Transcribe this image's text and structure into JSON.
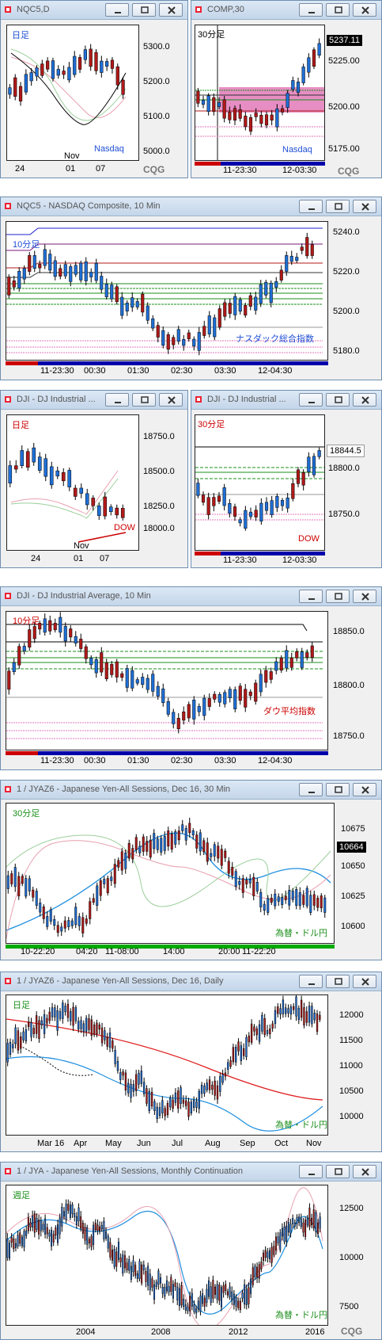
{
  "windows": {
    "w1": {
      "title": "NQC5,D",
      "period_label": "日足",
      "name_label": "Nasdaq",
      "y_ticks": [
        "5300.0",
        "5200.0",
        "5100.0",
        "5000.0"
      ],
      "x_ticks": [
        "24",
        "01",
        "07"
      ],
      "x_month": "Nov"
    },
    "w2": {
      "title": "COMP,30",
      "period_label": "30分足",
      "name_label": "Nasdaq",
      "price_tag": "5237.11",
      "y_ticks": [
        "5225.00",
        "5200.00",
        "5175.00"
      ],
      "x_ticks": [
        "11-23:30",
        "12-03:30"
      ]
    },
    "w3": {
      "title": "NQC5 - NASDAQ Composite, 10 Min",
      "period_label": "10分足",
      "name_label": "ナスダック総合指数",
      "y_ticks": [
        "5240.0",
        "5220.0",
        "5200.0",
        "5180.0"
      ],
      "x_ticks": [
        "11-23:30",
        "00:30",
        "01:30",
        "02:30",
        "03:30",
        "12-04:30"
      ]
    },
    "w4": {
      "title": "DJI - DJ Industrial ...",
      "period_label": "日足",
      "name_label": "DOW",
      "y_ticks": [
        "18750.0",
        "18500.0",
        "18250.0",
        "18000.0"
      ],
      "x_ticks": [
        "24",
        "01",
        "07"
      ],
      "x_month": "Nov"
    },
    "w5": {
      "title": "DJI - DJ Industrial ...",
      "period_label": "30分足",
      "name_label": "DOW",
      "price_tag": "18844.5",
      "y_ticks": [
        "18800.0",
        "18750.0"
      ],
      "x_ticks": [
        "11-23:30",
        "12-03:30"
      ]
    },
    "w6": {
      "title": "DJI - DJ Industrial Average, 10 Min",
      "period_label": "10分足",
      "name_label": "ダウ平均指数",
      "y_ticks": [
        "18850.0",
        "18800.0",
        "18750.0"
      ],
      "x_ticks": [
        "11-23:30",
        "00:30",
        "01:30",
        "02:30",
        "03:30",
        "12-04:30"
      ]
    },
    "w7": {
      "title": "1 / JYAZ6 - Japanese Yen-All Sessions, Dec 16, 30 Min",
      "period_label": "30分足",
      "name_label": "為替・ドル円",
      "price_tag": "10664",
      "y_ticks": [
        "10675",
        "10650",
        "10625",
        "10600"
      ],
      "x_ticks": [
        "10-22:20",
        "04:20",
        "11-08:00",
        "14:00",
        "20:00",
        "11-22:20"
      ]
    },
    "w8": {
      "title": "1 / JYAZ6 - Japanese Yen-All Sessions, Dec 16, Daily",
      "period_label": "日足",
      "name_label": "為替・ドル円",
      "y_ticks": [
        "12000",
        "11500",
        "11000",
        "10500",
        "10000"
      ],
      "x_ticks": [
        "Mar 16",
        "Apr",
        "May",
        "Jun",
        "Jul",
        "Aug",
        "Sep",
        "Oct",
        "Nov"
      ]
    },
    "w9": {
      "title": "1 / JYA - Japanese Yen-All Sessions, Monthly Continuation",
      "period_label": "週足",
      "name_label": "為替・ドル円",
      "y_ticks": [
        "12500",
        "10000",
        "7500"
      ],
      "x_ticks": [
        "2004",
        "2008",
        "2012",
        "2016"
      ]
    }
  },
  "logo": "CQG",
  "colors": {
    "up": "#1f6fd6",
    "down": "#b01919",
    "title_bg": "#cfdcea",
    "grid_green": "#00a000",
    "pink_zone": "#e060b0"
  }
}
